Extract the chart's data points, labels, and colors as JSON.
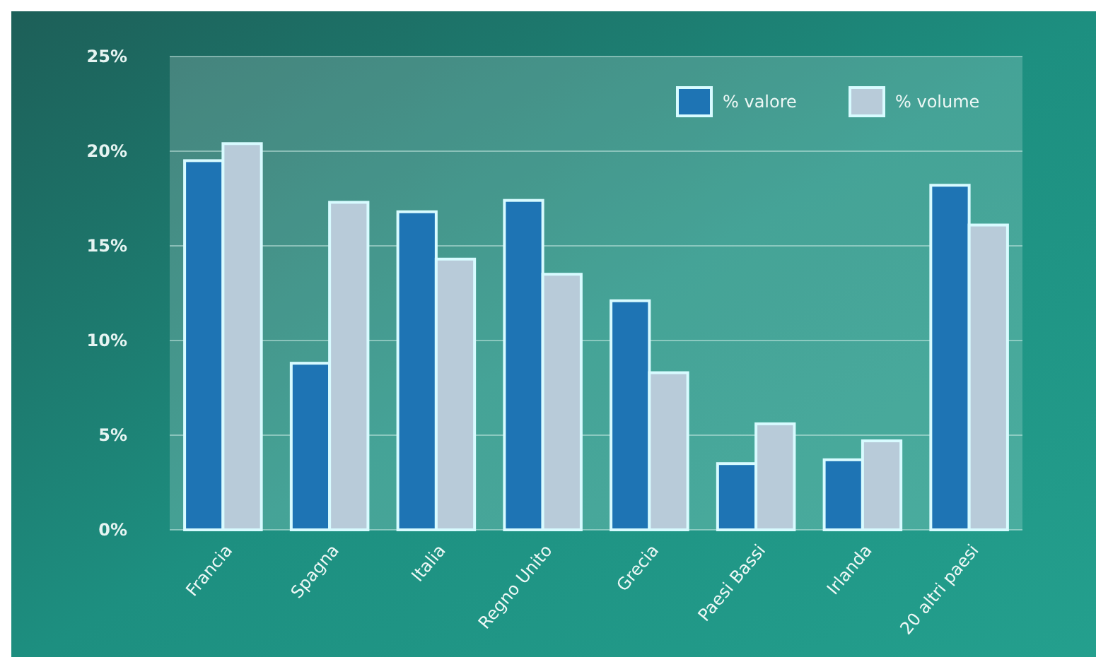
{
  "chart_data": {
    "type": "bar",
    "categories": [
      "Francia",
      "Spagna",
      "Italia",
      "Regno Unito",
      "Grecia",
      "Paesi Bassi",
      "Irlanda",
      "20 altri paesi"
    ],
    "series": [
      {
        "name": "% valore",
        "color": "#1e74b4",
        "values": [
          19.5,
          8.8,
          16.8,
          17.4,
          12.1,
          3.5,
          3.7,
          18.2
        ]
      },
      {
        "name": "% volume",
        "color": "#b8cbd9",
        "values": [
          20.4,
          17.3,
          14.3,
          13.5,
          8.3,
          5.6,
          4.7,
          16.1
        ]
      }
    ],
    "ylim": [
      0,
      25
    ],
    "yticks": [
      {
        "value": 0,
        "label": "0%"
      },
      {
        "value": 5,
        "label": "5%"
      },
      {
        "value": 10,
        "label": "10%"
      },
      {
        "value": 15,
        "label": "15%"
      },
      {
        "value": 20,
        "label": "20%"
      },
      {
        "value": 25,
        "label": "25%"
      }
    ],
    "grid": "y",
    "legend": "top right"
  }
}
